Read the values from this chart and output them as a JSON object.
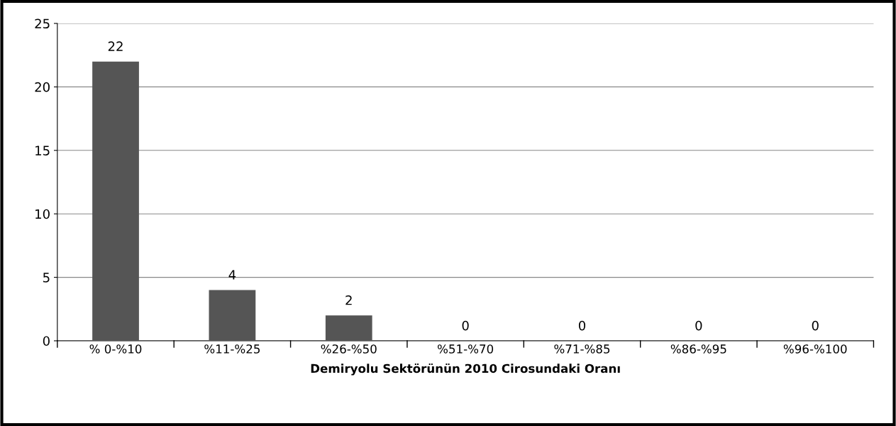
{
  "chart_data": {
    "type": "bar",
    "xlabel": "Demiryolu Sektörünün 2010 Cirosundaki Oranı",
    "categories": [
      "% 0-%10",
      "%11-%25",
      "%26-%50",
      "%51-%70",
      "%71-%85",
      "%86-%95",
      "%96-%100"
    ],
    "values": [
      22,
      4,
      2,
      0,
      0,
      0,
      0
    ],
    "color": "#555555",
    "ylim": [
      0,
      25
    ],
    "yticks": [
      0,
      5,
      10,
      15,
      20,
      25
    ],
    "grid": "y",
    "data_labels": true
  }
}
